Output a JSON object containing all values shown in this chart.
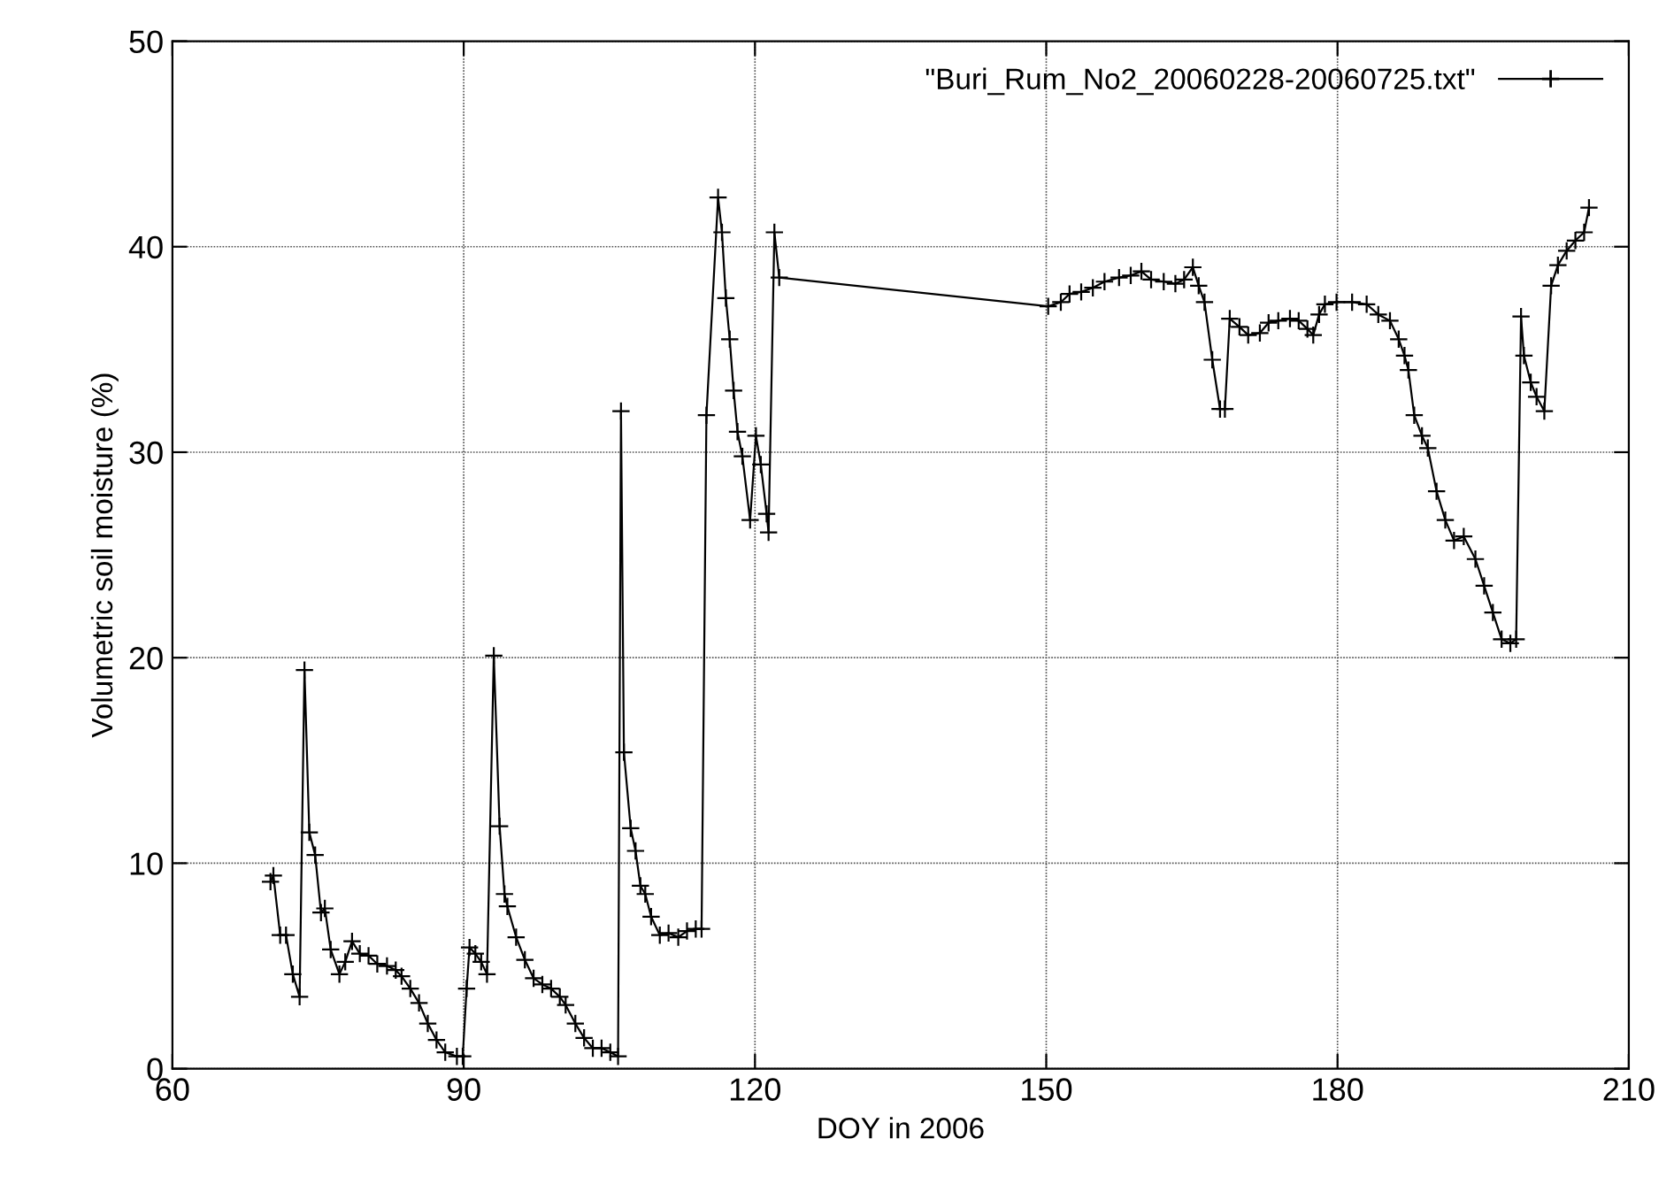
{
  "chart_data": {
    "type": "line",
    "xlabel": "DOY in 2006",
    "ylabel": "Volumetric soil moisture (%)",
    "xlim": [
      60,
      210
    ],
    "xticks": [
      60,
      90,
      120,
      150,
      180,
      210
    ],
    "ylim": [
      0,
      50
    ],
    "yticks": [
      0,
      10,
      20,
      30,
      40,
      50
    ],
    "grid": true,
    "legend": "top right",
    "marker": "cross",
    "line_style": "solid",
    "series": [
      {
        "name": "\"Buri_Rum_No2_20060228-20060725.txt\"",
        "color": "#000000",
        "x": [
          70.1,
          70.4,
          71.1,
          71.7,
          72.4,
          73.1,
          73.6,
          74.1,
          74.7,
          75.3,
          75.7,
          76.3,
          77.2,
          77.8,
          78.5,
          79.3,
          80.2,
          81.1,
          82.1,
          83.0,
          83.6,
          84.5,
          85.4,
          86.3,
          87.2,
          88.1,
          89.3,
          89.9,
          90.3,
          90.6,
          91.2,
          91.8,
          92.4,
          93.1,
          93.7,
          94.2,
          94.5,
          95.4,
          96.3,
          97.2,
          98.1,
          99.0,
          99.9,
          100.5,
          101.5,
          102.4,
          103.3,
          104.2,
          105.1,
          105.9,
          106.2,
          106.5,
          107.2,
          107.7,
          108.2,
          108.7,
          109.3,
          110.2,
          111.1,
          112.1,
          113.0,
          113.9,
          114.5,
          115.0,
          116.2,
          116.6,
          117.0,
          117.4,
          117.8,
          118.2,
          118.7,
          119.5,
          120.1,
          120.6,
          121.2,
          121.4,
          122.0,
          122.5,
          150.2,
          151.5,
          152.4,
          153.6,
          154.8,
          156.0,
          157.5,
          158.7,
          159.8,
          160.8,
          162.1,
          163.3,
          164.2,
          165.1,
          165.7,
          166.3,
          167.1,
          167.9,
          168.4,
          168.9,
          169.9,
          170.8,
          172.0,
          172.9,
          173.9,
          175.1,
          176.0,
          176.9,
          177.5,
          178.1,
          178.7,
          179.9,
          181.5,
          183.0,
          184.2,
          185.4,
          186.3,
          186.9,
          187.3,
          187.9,
          188.7,
          189.3,
          190.2,
          191.1,
          192.0,
          193.0,
          194.2,
          195.1,
          196.0,
          196.9,
          197.8,
          198.4,
          198.9,
          199.2,
          199.9,
          200.5,
          201.3,
          202.0,
          202.7,
          203.6,
          204.5,
          205.4,
          205.9
        ],
        "values": [
          9.1,
          9.4,
          6.5,
          6.5,
          4.6,
          3.5,
          19.4,
          11.5,
          10.4,
          7.6,
          7.8,
          5.8,
          4.6,
          5.2,
          6.2,
          5.6,
          5.5,
          5.1,
          5.0,
          4.8,
          4.5,
          3.9,
          3.2,
          2.2,
          1.4,
          0.8,
          0.6,
          0.6,
          3.9,
          5.9,
          5.6,
          5.2,
          4.6,
          20.1,
          11.8,
          8.5,
          7.9,
          6.4,
          5.3,
          4.4,
          4.1,
          3.9,
          3.5,
          3.1,
          2.2,
          1.5,
          1.0,
          1.0,
          0.8,
          0.6,
          32.0,
          15.4,
          11.7,
          10.6,
          8.9,
          8.5,
          7.4,
          6.5,
          6.6,
          6.4,
          6.7,
          6.8,
          6.8,
          31.8,
          42.4,
          40.7,
          37.5,
          35.5,
          33.0,
          31.0,
          29.8,
          26.7,
          30.8,
          29.4,
          27.0,
          26.1,
          40.7,
          38.5,
          37.1,
          37.3,
          37.7,
          37.8,
          38.0,
          38.3,
          38.5,
          38.6,
          38.8,
          38.4,
          38.3,
          38.2,
          38.4,
          39.0,
          38.1,
          37.3,
          34.5,
          32.1,
          32.1,
          36.5,
          36.1,
          35.7,
          35.8,
          36.3,
          36.4,
          36.5,
          36.4,
          36.0,
          35.7,
          36.7,
          37.2,
          37.3,
          37.3,
          37.2,
          36.7,
          36.4,
          35.5,
          34.7,
          34.0,
          31.8,
          30.8,
          30.2,
          28.1,
          26.7,
          25.7,
          25.9,
          24.8,
          23.5,
          22.2,
          20.9,
          20.7,
          20.9,
          36.6,
          34.7,
          33.4,
          32.7,
          32.0,
          38.1,
          39.1,
          39.8,
          40.3,
          40.7,
          41.9
        ]
      }
    ]
  }
}
